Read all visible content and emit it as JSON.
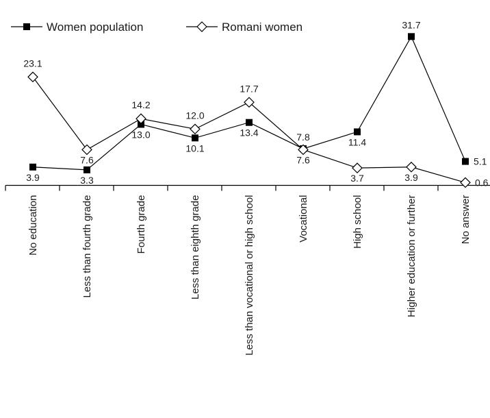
{
  "chart_data": {
    "type": "line",
    "categories": [
      "No education",
      "Less than fourth grade",
      "Fourth grade",
      "Less than eighth grade",
      "Less than vocational or high school",
      "Vocational",
      "High school",
      "Higher education or further",
      "No answer"
    ],
    "series": [
      {
        "name": "Women population",
        "marker": "filled-square",
        "color": "#000000",
        "values": [
          3.9,
          3.3,
          13.0,
          10.1,
          13.4,
          7.8,
          11.4,
          31.7,
          5.1
        ],
        "labels": [
          "3.9",
          "3.3",
          "13.0",
          "10.1",
          "13.4",
          "7.8",
          "11.4",
          "31.7",
          "5.1"
        ]
      },
      {
        "name": "Romani women",
        "marker": "open-diamond",
        "color": "#000000",
        "values": [
          23.1,
          7.6,
          14.2,
          12.0,
          17.7,
          7.6,
          3.7,
          3.9,
          0.6
        ],
        "labels": [
          "23.1",
          "7.6",
          "14.2",
          "12.0",
          "17.7",
          "7.6",
          "3.7",
          "3.9",
          "0.6"
        ]
      }
    ],
    "ylim": [
      0,
      35
    ],
    "legend_position": "top-left",
    "grid": false
  }
}
